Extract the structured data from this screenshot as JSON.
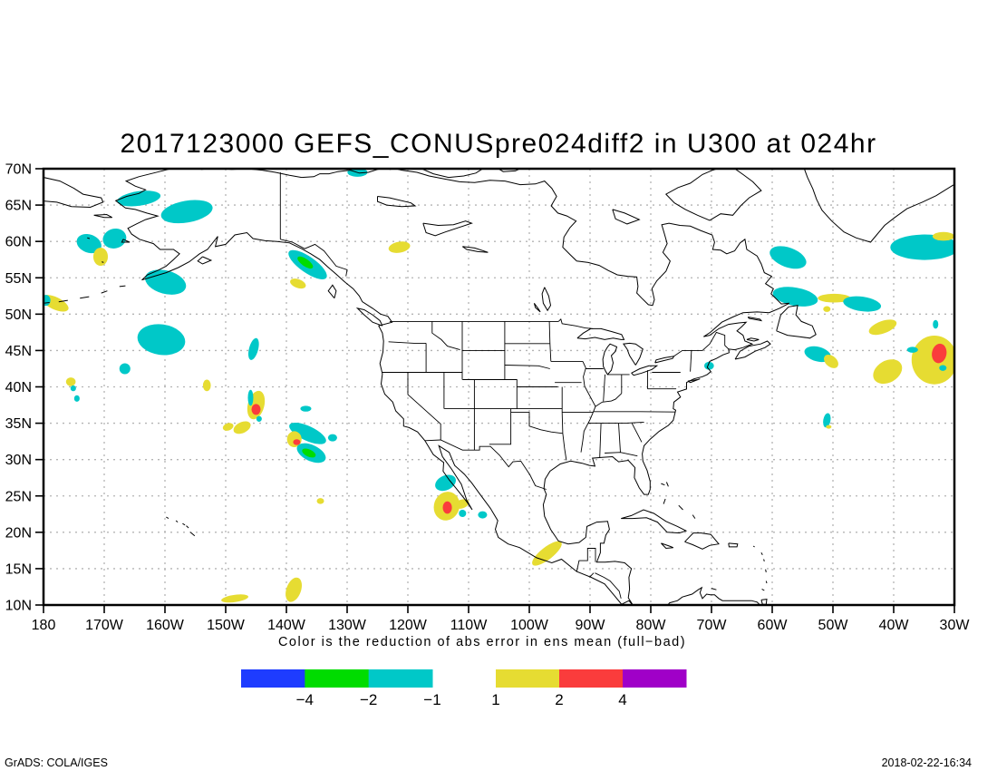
{
  "title": "2017123000 GEFS_CONUSpre024diff2 in U300 at 024hr",
  "caption": "Color is the reduction of abs error in ens mean (full−bad)",
  "footer": {
    "left": "GrADS: COLA/IGES",
    "right": "2018-02-22-16:34"
  },
  "chart_data": {
    "type": "shaded-contour-map",
    "lon_range": [
      -180,
      -30
    ],
    "lat_range": [
      10,
      70
    ],
    "grid": {
      "lon_step_deg": 10,
      "lat_step_deg": 5,
      "style": "dotted",
      "color": "#b4b4b4"
    },
    "x_ticks": [
      {
        "lon": -180,
        "label": "180"
      },
      {
        "lon": -170,
        "label": "170W"
      },
      {
        "lon": -160,
        "label": "160W"
      },
      {
        "lon": -150,
        "label": "150W"
      },
      {
        "lon": -140,
        "label": "140W"
      },
      {
        "lon": -130,
        "label": "130W"
      },
      {
        "lon": -120,
        "label": "120W"
      },
      {
        "lon": -110,
        "label": "110W"
      },
      {
        "lon": -100,
        "label": "100W"
      },
      {
        "lon": -90,
        "label": "90W"
      },
      {
        "lon": -80,
        "label": "80W"
      },
      {
        "lon": -70,
        "label": "70W"
      },
      {
        "lon": -60,
        "label": "60W"
      },
      {
        "lon": -50,
        "label": "50W"
      },
      {
        "lon": -40,
        "label": "40W"
      },
      {
        "lon": -30,
        "label": "30W"
      }
    ],
    "y_ticks": [
      {
        "lat": 70,
        "label": "70N"
      },
      {
        "lat": 65,
        "label": "65N"
      },
      {
        "lat": 60,
        "label": "60N"
      },
      {
        "lat": 55,
        "label": "55N"
      },
      {
        "lat": 50,
        "label": "50N"
      },
      {
        "lat": 45,
        "label": "45N"
      },
      {
        "lat": 40,
        "label": "40N"
      },
      {
        "lat": 35,
        "label": "35N"
      },
      {
        "lat": 30,
        "label": "30N"
      },
      {
        "lat": 25,
        "label": "25N"
      },
      {
        "lat": 20,
        "label": "20N"
      },
      {
        "lat": 15,
        "label": "15N"
      },
      {
        "lat": 10,
        "label": "10N"
      }
    ],
    "contour_levels": [
      -4,
      -2,
      -1,
      1,
      2,
      4
    ],
    "band_colors": {
      "-4": "#1e3cff",
      "-2": "#00dc00",
      "-1": "#00c8c8",
      "1": "#e6dc32",
      "2": "#fa3c3c",
      "4": "#a000c8"
    },
    "legend": {
      "left_bar": {
        "colors": [
          "#1e3cff",
          "#00dc00",
          "#00c8c8"
        ],
        "labels": [
          "−4",
          "−2",
          "−1"
        ]
      },
      "right_bar": {
        "colors": [
          "#e6dc32",
          "#fa3c3c",
          "#a000c8"
        ],
        "labels": [
          "1",
          "2",
          "4"
        ]
      }
    },
    "patches": [
      {
        "lon": -164.3,
        "lat": 65.9,
        "w": 7.2,
        "h": 2.0,
        "rot": -8,
        "band": -1
      },
      {
        "lon": -156.4,
        "lat": 64.1,
        "w": 8.6,
        "h": 3.0,
        "rot": -10,
        "band": -1
      },
      {
        "lon": -172.5,
        "lat": 59.7,
        "w": 4.2,
        "h": 2.5,
        "rot": 20,
        "band": -1
      },
      {
        "lon": -168.3,
        "lat": 60.4,
        "w": 3.9,
        "h": 2.7,
        "rot": -15,
        "band": -1
      },
      {
        "lon": -170.6,
        "lat": 57.9,
        "w": 2.4,
        "h": 2.5,
        "rot": 0,
        "band": 1
      },
      {
        "lon": -178.1,
        "lat": 51.5,
        "w": 4.8,
        "h": 1.7,
        "rot": 25,
        "band": 1
      },
      {
        "lon": -179.6,
        "lat": 51.9,
        "w": 1.5,
        "h": 1.5,
        "rot": 0,
        "band": -1
      },
      {
        "lon": -159.9,
        "lat": 54.4,
        "w": 6.9,
        "h": 3.2,
        "rot": 15,
        "band": -1
      },
      {
        "lon": -136.5,
        "lat": 56.8,
        "w": 7.5,
        "h": 2.2,
        "rot": 35,
        "band": -1
      },
      {
        "lon": -136.9,
        "lat": 57.1,
        "w": 3.0,
        "h": 1.0,
        "rot": 35,
        "band": -2
      },
      {
        "lon": -138.1,
        "lat": 54.2,
        "w": 2.7,
        "h": 1.2,
        "rot": 20,
        "band": 1
      },
      {
        "lon": -160.6,
        "lat": 46.5,
        "w": 7.9,
        "h": 4.2,
        "rot": 8,
        "band": -1
      },
      {
        "lon": -145.4,
        "lat": 45.2,
        "w": 1.5,
        "h": 3.1,
        "rot": 15,
        "band": -1
      },
      {
        "lon": -166.6,
        "lat": 42.5,
        "w": 1.8,
        "h": 1.5,
        "rot": 0,
        "band": -1
      },
      {
        "lon": -175.5,
        "lat": 40.7,
        "w": 1.6,
        "h": 1.2,
        "rot": 0,
        "band": 1
      },
      {
        "lon": -175.1,
        "lat": 39.8,
        "w": 0.9,
        "h": 0.8,
        "rot": 0,
        "band": -1
      },
      {
        "lon": -174.5,
        "lat": 38.4,
        "w": 0.9,
        "h": 0.9,
        "rot": 0,
        "band": -1
      },
      {
        "lon": -153.1,
        "lat": 40.2,
        "w": 1.3,
        "h": 1.6,
        "rot": 0,
        "band": 1
      },
      {
        "lon": -145.0,
        "lat": 37.5,
        "w": 2.7,
        "h": 4.0,
        "rot": 15,
        "band": 1
      },
      {
        "lon": -145.0,
        "lat": 36.9,
        "w": 1.5,
        "h": 1.5,
        "rot": 0,
        "band": 2
      },
      {
        "lon": -145.9,
        "lat": 38.5,
        "w": 0.9,
        "h": 2.2,
        "rot": 0,
        "band": -1
      },
      {
        "lon": -144.5,
        "lat": 35.6,
        "w": 0.9,
        "h": 0.8,
        "rot": 0,
        "band": -1
      },
      {
        "lon": -147.3,
        "lat": 34.4,
        "w": 3.0,
        "h": 1.5,
        "rot": -25,
        "band": 1
      },
      {
        "lon": -149.6,
        "lat": 34.5,
        "w": 1.8,
        "h": 1.0,
        "rot": -20,
        "band": 1
      },
      {
        "lon": -136.5,
        "lat": 33.6,
        "w": 6.6,
        "h": 2.0,
        "rot": 25,
        "band": -1
      },
      {
        "lon": -132.4,
        "lat": 33.0,
        "w": 1.5,
        "h": 1.0,
        "rot": 0,
        "band": -1
      },
      {
        "lon": -138.7,
        "lat": 32.8,
        "w": 2.4,
        "h": 2.2,
        "rot": 0,
        "band": 1
      },
      {
        "lon": -138.3,
        "lat": 32.4,
        "w": 1.2,
        "h": 0.8,
        "rot": 0,
        "band": 2
      },
      {
        "lon": -135.9,
        "lat": 30.9,
        "w": 5.1,
        "h": 2.2,
        "rot": 25,
        "band": -1
      },
      {
        "lon": -136.3,
        "lat": 30.9,
        "w": 2.4,
        "h": 1.0,
        "rot": 25,
        "band": -2
      },
      {
        "lon": -136.8,
        "lat": 37.0,
        "w": 1.8,
        "h": 0.8,
        "rot": 0,
        "band": -1
      },
      {
        "lon": -134.4,
        "lat": 24.3,
        "w": 1.2,
        "h": 0.8,
        "rot": 0,
        "band": 1
      },
      {
        "lon": -113.8,
        "lat": 26.8,
        "w": 3.6,
        "h": 2.0,
        "rot": -25,
        "band": -1
      },
      {
        "lon": -113.6,
        "lat": 23.6,
        "w": 4.2,
        "h": 4.0,
        "rot": 20,
        "band": 1
      },
      {
        "lon": -113.5,
        "lat": 23.4,
        "w": 1.5,
        "h": 1.7,
        "rot": 0,
        "band": 2
      },
      {
        "lon": -111.1,
        "lat": 23.9,
        "w": 2.4,
        "h": 1.2,
        "rot": -20,
        "band": 1
      },
      {
        "lon": -111.0,
        "lat": 22.6,
        "w": 1.2,
        "h": 1.0,
        "rot": 0,
        "band": -1
      },
      {
        "lon": -107.7,
        "lat": 22.4,
        "w": 1.5,
        "h": 1.0,
        "rot": 0,
        "band": -1
      },
      {
        "lon": -97.1,
        "lat": 17.1,
        "w": 6.0,
        "h": 1.7,
        "rot": -38,
        "band": 1
      },
      {
        "lon": -148.5,
        "lat": 10.9,
        "w": 4.5,
        "h": 1.0,
        "rot": -8,
        "band": 1
      },
      {
        "lon": -138.8,
        "lat": 12.1,
        "w": 2.4,
        "h": 3.5,
        "rot": 20,
        "band": 1
      },
      {
        "lon": -34.9,
        "lat": 59.2,
        "w": 11.3,
        "h": 3.5,
        "rot": 0,
        "band": -1
      },
      {
        "lon": -31.8,
        "lat": 60.7,
        "w": 3.6,
        "h": 1.2,
        "rot": 0,
        "band": 1
      },
      {
        "lon": -57.4,
        "lat": 57.8,
        "w": 6.3,
        "h": 2.7,
        "rot": 20,
        "band": -1
      },
      {
        "lon": -56.2,
        "lat": 52.4,
        "w": 7.5,
        "h": 2.5,
        "rot": 10,
        "band": -1
      },
      {
        "lon": -49.8,
        "lat": 52.2,
        "w": 5.4,
        "h": 1.2,
        "rot": 0,
        "band": 1
      },
      {
        "lon": -51.0,
        "lat": 50.7,
        "w": 1.2,
        "h": 0.8,
        "rot": 0,
        "band": 1
      },
      {
        "lon": -45.2,
        "lat": 51.4,
        "w": 6.3,
        "h": 2.0,
        "rot": 8,
        "band": -1
      },
      {
        "lon": -41.8,
        "lat": 48.2,
        "w": 4.8,
        "h": 1.7,
        "rot": -20,
        "band": 1
      },
      {
        "lon": -52.5,
        "lat": 44.5,
        "w": 4.5,
        "h": 2.0,
        "rot": 15,
        "band": -1
      },
      {
        "lon": -50.3,
        "lat": 43.5,
        "w": 2.7,
        "h": 1.5,
        "rot": 40,
        "band": 1
      },
      {
        "lon": -33.3,
        "lat": 43.7,
        "w": 7.5,
        "h": 6.7,
        "rot": 0,
        "band": 1
      },
      {
        "lon": -32.5,
        "lat": 44.6,
        "w": 2.4,
        "h": 2.7,
        "rot": 10,
        "band": 2
      },
      {
        "lon": -33.1,
        "lat": 48.6,
        "w": 0.9,
        "h": 1.2,
        "rot": 0,
        "band": -1
      },
      {
        "lon": -36.9,
        "lat": 45.1,
        "w": 1.8,
        "h": 0.8,
        "rot": 0,
        "band": -1
      },
      {
        "lon": -31.9,
        "lat": 42.6,
        "w": 1.2,
        "h": 0.8,
        "rot": 0,
        "band": -1
      },
      {
        "lon": -41.0,
        "lat": 42.1,
        "w": 5.1,
        "h": 3.0,
        "rot": -30,
        "band": 1
      },
      {
        "lon": -51.0,
        "lat": 35.4,
        "w": 1.2,
        "h": 2.0,
        "rot": 10,
        "band": -1
      },
      {
        "lon": -50.7,
        "lat": 34.5,
        "w": 0.9,
        "h": 0.5,
        "rot": 0,
        "band": 1
      },
      {
        "lon": -128.3,
        "lat": 69.5,
        "w": 3.3,
        "h": 1.2,
        "rot": 0,
        "band": -1
      },
      {
        "lon": -121.4,
        "lat": 59.2,
        "w": 3.6,
        "h": 1.5,
        "rot": -10,
        "band": 1
      },
      {
        "lon": -70.4,
        "lat": 42.9,
        "w": 1.6,
        "h": 1.1,
        "rot": 0,
        "band": -1
      }
    ]
  }
}
